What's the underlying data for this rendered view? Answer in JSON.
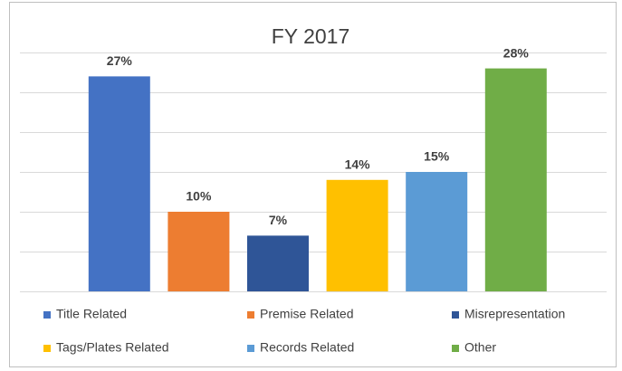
{
  "chart_data": {
    "type": "bar",
    "title": "FY 2017",
    "categories": [
      "Title Related",
      "Premise Related",
      "Misrepresentation",
      "Tags/Plates Related",
      "Records Related",
      "Other"
    ],
    "values": [
      27,
      10,
      7,
      14,
      15,
      28
    ],
    "value_labels": [
      "27%",
      "10%",
      "7%",
      "14%",
      "15%",
      "28%"
    ],
    "colors": [
      "#4472c4",
      "#ed7d31",
      "#2f5597",
      "#ffc000",
      "#5b9bd5",
      "#70ad47"
    ],
    "ylim": [
      0,
      30
    ],
    "yticks": [
      0,
      5,
      10,
      15,
      20,
      25,
      30
    ],
    "grid": true,
    "legend": "bottom"
  }
}
